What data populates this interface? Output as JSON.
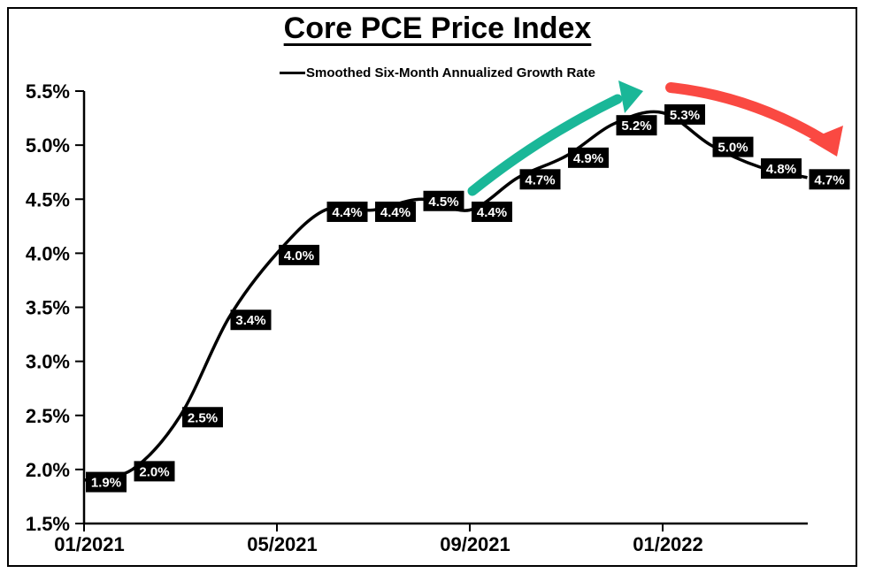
{
  "title": "Core PCE Price Index",
  "legend_label": "Smoothed Six-Month Annualized Growth Rate",
  "chart_data": {
    "type": "line",
    "title": "Core PCE Price Index",
    "x": [
      "01/2021",
      "02/2021",
      "03/2021",
      "04/2021",
      "05/2021",
      "06/2021",
      "07/2021",
      "08/2021",
      "09/2021",
      "10/2021",
      "11/2021",
      "12/2021",
      "01/2022",
      "02/2022",
      "03/2022",
      "04/2022"
    ],
    "series": [
      {
        "name": "Smoothed Six-Month Annualized Growth Rate",
        "values": [
          1.9,
          2.0,
          2.5,
          3.4,
          4.0,
          4.4,
          4.4,
          4.5,
          4.4,
          4.7,
          4.9,
          5.2,
          5.3,
          5.0,
          4.8,
          4.7
        ]
      }
    ],
    "point_labels": [
      "1.9%",
      "2.0%",
      "2.5%",
      "3.4%",
      "4.0%",
      "4.4%",
      "4.4%",
      "4.5%",
      "4.4%",
      "4.7%",
      "4.9%",
      "5.2%",
      "5.3%",
      "5.0%",
      "4.8%",
      "4.7%"
    ],
    "xlabel": "",
    "ylabel": "",
    "ylim": [
      1.5,
      5.5
    ],
    "yticks": [
      {
        "v": 5.5,
        "label": "5.5%"
      },
      {
        "v": 5.0,
        "label": "5.0%"
      },
      {
        "v": 4.5,
        "label": "4.5%"
      },
      {
        "v": 4.0,
        "label": "4.0%"
      },
      {
        "v": 3.5,
        "label": "3.5%"
      },
      {
        "v": 3.0,
        "label": "3.0%"
      },
      {
        "v": 2.5,
        "label": "2.5%"
      },
      {
        "v": 2.0,
        "label": "2.0%"
      },
      {
        "v": 1.5,
        "label": "1.5%"
      }
    ],
    "xticks": [
      {
        "index": 0,
        "label": "01/2021"
      },
      {
        "index": 4,
        "label": "05/2021"
      },
      {
        "index": 8,
        "label": "09/2021"
      },
      {
        "index": 12,
        "label": "01/2022"
      }
    ],
    "grid": false,
    "legend_position": "top-center",
    "colors": {
      "line": "#000000",
      "label_box_bg": "#000000",
      "label_box_text": "#ffffff",
      "uptrend_arrow": "#1ab798",
      "downtrend_arrow": "#fa4942"
    },
    "annotations": [
      {
        "type": "hand-drawn-arrow",
        "meaning": "accelerating-uptrend",
        "direction": "up-right",
        "color_key": "uptrend_arrow"
      },
      {
        "type": "hand-drawn-arrow",
        "meaning": "decelerating-downtrend",
        "direction": "down-right",
        "color_key": "downtrend_arrow"
      }
    ]
  }
}
